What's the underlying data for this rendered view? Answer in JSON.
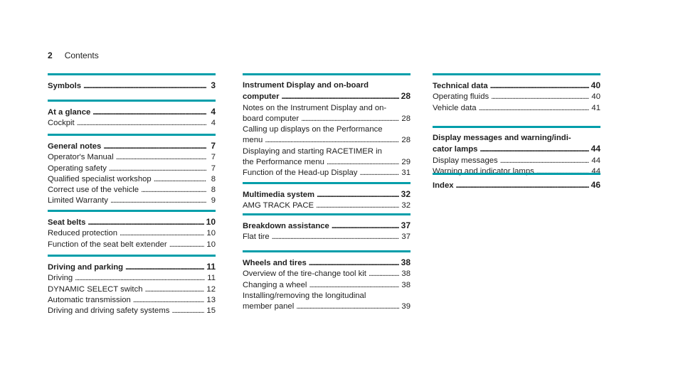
{
  "header": {
    "page_number": "2",
    "title": "Contents"
  },
  "columns": [
    [
      {
        "title": "Symbols",
        "page": "3",
        "entries": []
      },
      {
        "title": "At a glance",
        "page": "4",
        "entries": [
          {
            "text": [
              "Cockpit"
            ],
            "page": "4"
          }
        ]
      },
      {
        "title": "General notes",
        "page": "7",
        "entries": [
          {
            "text": [
              "Operator's Manual"
            ],
            "page": "7"
          },
          {
            "text": [
              "Operating safety"
            ],
            "page": "7"
          },
          {
            "text": [
              "Qualified specialist workshop"
            ],
            "page": "8"
          },
          {
            "text": [
              "Correct use of the vehicle"
            ],
            "page": "8"
          },
          {
            "text": [
              "Limited Warranty"
            ],
            "page": "9"
          }
        ]
      },
      {
        "title": "Seat belts",
        "page": "10",
        "entries": [
          {
            "text": [
              "Reduced protection"
            ],
            "page": "10"
          },
          {
            "text": [
              "Function of the seat belt extender"
            ],
            "page": "10"
          }
        ]
      },
      {
        "title": "Driving and parking",
        "page": "11",
        "entries": [
          {
            "text": [
              "Driving"
            ],
            "page": "11"
          },
          {
            "text": [
              "DYNAMIC SELECT switch"
            ],
            "page": "12"
          },
          {
            "text": [
              "Automatic transmission"
            ],
            "page": "13"
          },
          {
            "text": [
              "Driving and driving safety systems"
            ],
            "page": "15"
          }
        ]
      }
    ],
    [
      {
        "title_lines": [
          "Instrument Display and on-board"
        ],
        "title": "computer",
        "page": "28",
        "entries": [
          {
            "text": [
              "Notes on the Instrument Display and on-",
              "board computer"
            ],
            "page": "28"
          },
          {
            "text": [
              "Calling up displays on the Performance",
              "menu"
            ],
            "page": "28"
          },
          {
            "text": [
              "Displaying and starting RACETIMER in",
              "the Performance menu"
            ],
            "page": "29"
          },
          {
            "text": [
              "Function of the Head-up Display"
            ],
            "page": "31"
          }
        ]
      },
      {
        "title": "Multimedia system",
        "page": "32",
        "entries": [
          {
            "text": [
              "AMG TRACK PACE"
            ],
            "page": "32"
          }
        ]
      },
      {
        "title": "Breakdown assistance",
        "page": "37",
        "entries": [
          {
            "text": [
              "Flat tire"
            ],
            "page": "37"
          }
        ]
      },
      {
        "title": "Wheels and tires",
        "page": "38",
        "entries": [
          {
            "text": [
              "Overview of the tire-change tool kit"
            ],
            "page": "38"
          },
          {
            "text": [
              "Changing a wheel"
            ],
            "page": "38"
          },
          {
            "text": [
              "Installing/removing the longitudinal",
              "member panel"
            ],
            "page": "39"
          }
        ]
      }
    ],
    [
      {
        "title": "Technical data",
        "page": "40",
        "entries": [
          {
            "text": [
              "Operating fluids"
            ],
            "page": "40"
          },
          {
            "text": [
              "Vehicle data"
            ],
            "page": "41"
          }
        ]
      },
      {
        "title_lines": [
          "Display messages and warning/indi-"
        ],
        "title": "cator lamps",
        "page": "44",
        "entries": [
          {
            "text": [
              "Display messages"
            ],
            "page": "44"
          },
          {
            "text": [
              "Warning and indicator lamps"
            ],
            "page": "44"
          }
        ]
      },
      {
        "title": "Index",
        "page": "46",
        "entries": []
      }
    ]
  ],
  "accent_color": "#009eaa"
}
